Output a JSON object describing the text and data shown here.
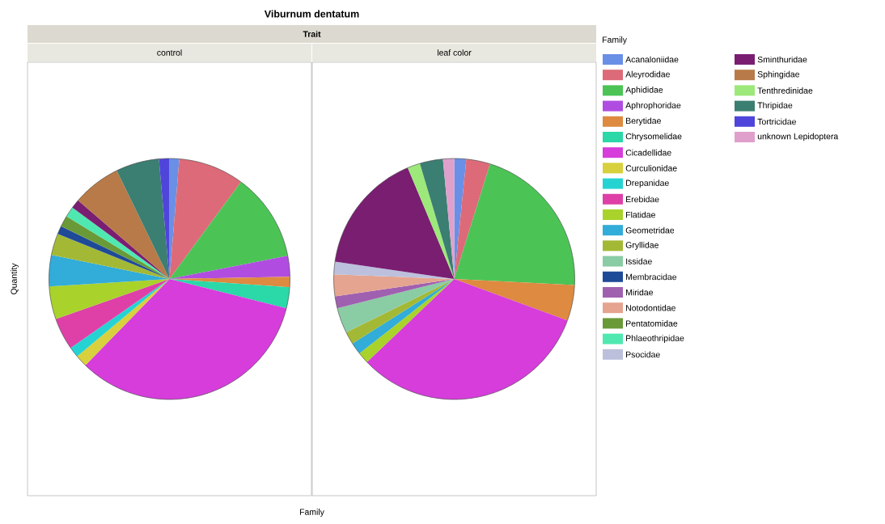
{
  "chart_data": [
    {
      "type": "pie",
      "title": "control",
      "annotations": [
        "Viburnum dentatum",
        "Trait"
      ],
      "xlabel": "Family",
      "ylabel": "Quantity",
      "legend_title": "Family",
      "legend": "right",
      "categories": [
        "Acanaloniidae",
        "Aleyrodidae",
        "Aphididae",
        "Aphrophoridae",
        "Berytidae",
        "Chrysomelidae",
        "Cicadellidae",
        "Curculionidae",
        "Drepanidae",
        "Erebidae",
        "Flatidae",
        "Geometridae",
        "Gryllidae",
        null,
        "Membracidae",
        null,
        null,
        "Pentatomidae",
        "Phlaeothripidae",
        null,
        "Sminthuridae",
        "Sphingidae",
        null,
        "Thripidae",
        "Tortricidae",
        null
      ],
      "values": [
        1.3,
        8.8,
        11.8,
        2.8,
        1.4,
        2.8,
        33.4,
        1.6,
        1.4,
        4.3,
        4.4,
        4.2,
        2.9,
        null,
        1.1,
        null,
        null,
        1.5,
        1.4,
        null,
        1.2,
        6.5,
        null,
        5.8,
        1.4,
        null
      ],
      "colors": [
        "#6a8fe6",
        "#dd6a78",
        "#4bc455",
        "#b04de0",
        "#de8a40",
        "#2ad8a8",
        "#d63ddb",
        "#d8d03c",
        "#26d3d3",
        "#de40a8",
        "#a9d22a",
        "#32acd8",
        "#a3b935",
        "#8acca4",
        "#1f4a98",
        "#a060b0",
        "#e5a490",
        "#6a9a38",
        "#4fe8b0",
        "#bcc0dc",
        "#7a1e72",
        "#b87a48",
        "#9de87a",
        "#3b7e72",
        "#4f45db",
        "#e0a0cc"
      ]
    },
    {
      "type": "pie",
      "title": "leaf color",
      "legend": "right",
      "categories": [
        null,
        null,
        null,
        null,
        null,
        null,
        null,
        null,
        null,
        null,
        null,
        null,
        null,
        "Issidae",
        null,
        "Miridae",
        "Notodontidae",
        null,
        null,
        "Psocidae",
        null,
        null,
        "Tenthredinidae",
        null,
        null,
        "unknown Lepidoptera"
      ],
      "values": [
        1.6,
        3.2,
        21.0,
        null,
        4.8,
        null,
        32.3,
        null,
        null,
        null,
        1.5,
        1.6,
        1.7,
        3.4,
        null,
        1.6,
        2.9,
        null,
        null,
        1.7,
        16.4,
        null,
        1.7,
        3.1,
        null,
        1.5
      ],
      "colors": [
        "#6a8fe6",
        "#dd6a78",
        "#4bc455",
        "#b04de0",
        "#de8a40",
        "#2ad8a8",
        "#d63ddb",
        "#d8d03c",
        "#26d3d3",
        "#de40a8",
        "#a9d22a",
        "#32acd8",
        "#a3b935",
        "#8acca4",
        "#1f4a98",
        "#a060b0",
        "#e5a490",
        "#6a9a38",
        "#4fe8b0",
        "#bcc0dc",
        "#7a1e72",
        "#b87a48",
        "#9de87a",
        "#3b7e72",
        "#4f45db",
        "#e0a0cc"
      ]
    }
  ]
}
